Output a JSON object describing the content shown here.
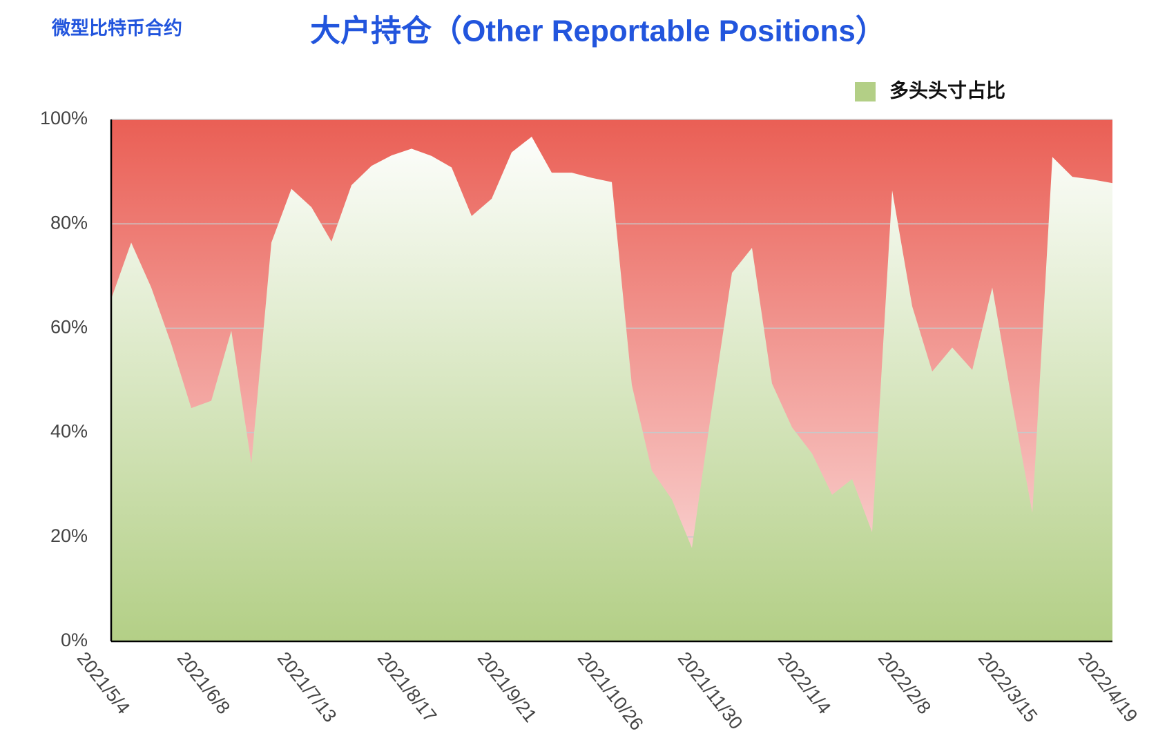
{
  "chart_data": {
    "type": "area",
    "subtitle": "微型比特币合约",
    "title": "大户持仓（Other Reportable Positions）",
    "categories": [
      "2021/5/4",
      null,
      null,
      null,
      null,
      "2021/6/8",
      null,
      null,
      null,
      null,
      "2021/7/13",
      null,
      null,
      null,
      null,
      "2021/8/17",
      null,
      null,
      null,
      null,
      "2021/9/21",
      null,
      null,
      null,
      null,
      "2021/10/26",
      null,
      null,
      null,
      null,
      "2021/11/30",
      null,
      null,
      null,
      null,
      "2022/1/4",
      null,
      null,
      null,
      null,
      "2022/2/8",
      null,
      null,
      null,
      null,
      "2022/3/15",
      null,
      null,
      null,
      null,
      "2022/4/19"
    ],
    "series": [
      {
        "name": "多头头寸占比",
        "color": "#b3cf86",
        "values": [
          65.6,
          76.4,
          67.8,
          57,
          44.7,
          46.1,
          59.5,
          34.1,
          76.4,
          86.7,
          83.2,
          76.6,
          87.4,
          91.1,
          93.1,
          94.4,
          93,
          90.8,
          81.5,
          84.8,
          93.7,
          96.7,
          89.8,
          89.8,
          88.8,
          88,
          49.1,
          32.7,
          27.2,
          17.9,
          44.8,
          70.6,
          75.4,
          49.4,
          41,
          36,
          28.1,
          31.1,
          20.9,
          86.4,
          64.2,
          51.7,
          56.3,
          52,
          67.8,
          45.6,
          24.6,
          92.8,
          89,
          88.5,
          87.8
        ]
      }
    ],
    "background_color": "#ea5f55",
    "ylim": [
      0,
      100
    ],
    "yticks": [
      {
        "value": 0,
        "label": "0%"
      },
      {
        "value": 20,
        "label": "20%"
      },
      {
        "value": 40,
        "label": "40%"
      },
      {
        "value": 60,
        "label": "60%"
      },
      {
        "value": 80,
        "label": "80%"
      },
      {
        "value": 100,
        "label": "100%"
      }
    ],
    "grid": true,
    "legend": "top-right"
  }
}
